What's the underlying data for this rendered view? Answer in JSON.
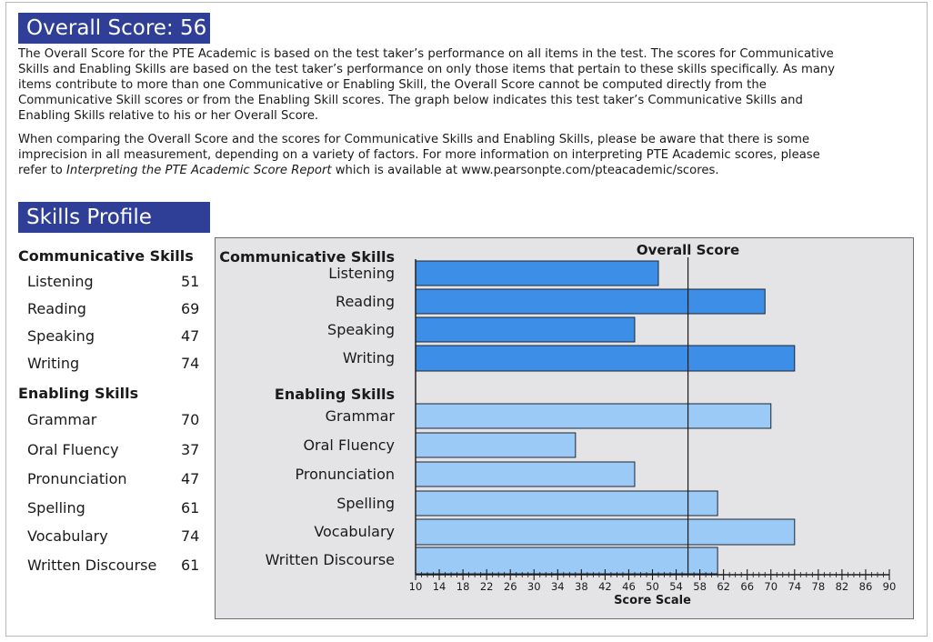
{
  "overall": {
    "title": "Overall Score: 56"
  },
  "intro": {
    "paragraph1": "The Overall Score for the PTE Academic is based on the test taker’s performance on all items in the test.  The scores for Communicative Skills and Enabling Skills are based on the test taker’s performance on only those items that pertain to these skills specifically.  As many items contribute to more than one Communicative or Enabling Skill, the Overall Score cannot be computed directly from the Communicative Skill scores or from the Enabling Skill scores.  The graph below indicates this test taker’s Communicative Skills and Enabling Skills relative to his or her Overall Score.",
    "paragraph2_before": "When comparing the Overall Score and the scores for Communicative Skills and Enabling Skills, please be aware that there is some imprecision in all measurement, depending on a variety of factors.  For more information on interpreting PTE Academic scores, please refer to ",
    "paragraph2_italic": "Interpreting the PTE Academic Score Report",
    "paragraph2_after": " which is available at www.pearsonpte.com/pteacademic/scores."
  },
  "skills_profile": {
    "title": "Skills Profile"
  },
  "colors": {
    "banner": "#2f3f97",
    "communicative_bar": "#3d8ee6",
    "enabling_bar": "#9ccaf6",
    "panel": "#e4e4e6"
  },
  "chart_data": {
    "type": "bar",
    "orientation": "horizontal",
    "overall_label": "Overall Score",
    "overall_value": 56,
    "xlabel": "Score Scale",
    "xlim": [
      10,
      90
    ],
    "major_ticks": [
      10,
      14,
      18,
      22,
      26,
      30,
      34,
      38,
      42,
      46,
      50,
      54,
      58,
      62,
      66,
      70,
      74,
      78,
      82,
      86,
      90
    ],
    "groups": [
      {
        "name": "Communicative Skills",
        "items": [
          {
            "label": "Listening",
            "value": 51
          },
          {
            "label": "Reading",
            "value": 69
          },
          {
            "label": "Speaking",
            "value": 47
          },
          {
            "label": "Writing",
            "value": 74
          }
        ]
      },
      {
        "name": "Enabling Skills",
        "items": [
          {
            "label": "Grammar",
            "value": 70
          },
          {
            "label": "Oral Fluency",
            "value": 37
          },
          {
            "label": "Pronunciation",
            "value": 47
          },
          {
            "label": "Spelling",
            "value": 61
          },
          {
            "label": "Vocabulary",
            "value": 74
          },
          {
            "label": "Written Discourse",
            "value": 61
          }
        ]
      }
    ]
  }
}
